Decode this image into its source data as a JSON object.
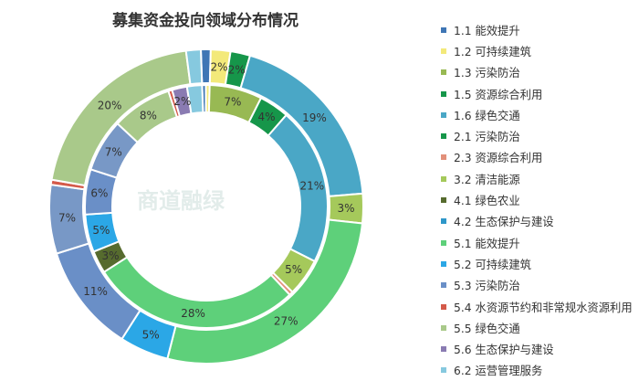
{
  "watermark": "商道融绿",
  "chart_data": {
    "type": "pie",
    "title": "募集资金投向领域分布情况",
    "legend_position": "right",
    "legend": [
      {
        "label": "1.1 能效提升",
        "color": "#3f76b5"
      },
      {
        "label": "1.2 可持续建筑",
        "color": "#f3e97a"
      },
      {
        "label": "1.3 污染防治",
        "color": "#98b953"
      },
      {
        "label": "1.5 资源综合利用",
        "color": "#16964a"
      },
      {
        "label": "1.6 绿色交通",
        "color": "#4aa7c6"
      },
      {
        "label": "2.1 污染防治",
        "color": "#16964a"
      },
      {
        "label": "2.3 资源综合利用",
        "color": "#e2907a"
      },
      {
        "label": "3.2 清洁能源",
        "color": "#a5c95b"
      },
      {
        "label": "4.1 绿色农业",
        "color": "#566b2e"
      },
      {
        "label": "4.2 生态保护与建设",
        "color": "#2e97c9"
      },
      {
        "label": "5.1  能效提升",
        "color": "#5ed07a"
      },
      {
        "label": "5.2 可持续建筑",
        "color": "#2ba7e6"
      },
      {
        "label": "5.3  污染防治",
        "color": "#6a8fc7"
      },
      {
        "label": "5.4 水资源节约和非常规水资源利用",
        "color": "#d45a4a"
      },
      {
        "label": "5.5 绿色交通",
        "color": "#a9c98a"
      },
      {
        "label": "5.6 生态保护与建设",
        "color": "#8a7bb2"
      },
      {
        "label": "6.2 运营管理服务",
        "color": "#86c9df"
      }
    ],
    "rings": [
      {
        "name": "outer",
        "slices": [
          {
            "value": 1,
            "label": "",
            "color": "#3f76b5"
          },
          {
            "value": 2,
            "label": "2%",
            "color": "#f3e97a"
          },
          {
            "value": 2,
            "label": "2%",
            "color": "#16964a"
          },
          {
            "value": 19,
            "label": "19%",
            "color": "#4aa7c6"
          },
          {
            "value": 3,
            "label": "3%",
            "color": "#a5c95b"
          },
          {
            "value": 27,
            "label": "27%",
            "color": "#5ed07a"
          },
          {
            "value": 5,
            "label": "5%",
            "color": "#2ba7e6"
          },
          {
            "value": 11,
            "label": "11%",
            "color": "#6a8fc7"
          },
          {
            "value": 7,
            "label": "7%",
            "color": "#7898c6"
          },
          {
            "value": 0.5,
            "label": "",
            "color": "#d45a4a"
          },
          {
            "value": 20,
            "label": "20%",
            "color": "#a9c98a"
          },
          {
            "value": 1.5,
            "label": "",
            "color": "#86c9df"
          }
        ]
      },
      {
        "name": "inner",
        "slices": [
          {
            "value": 0.5,
            "label": "",
            "color": "#3f76b5"
          },
          {
            "value": 0.5,
            "label": "",
            "color": "#f3e97a"
          },
          {
            "value": 7,
            "label": "7%",
            "color": "#98b953"
          },
          {
            "value": 4,
            "label": "4%",
            "color": "#16964a"
          },
          {
            "value": 21,
            "label": "21%",
            "color": "#4aa7c6"
          },
          {
            "value": 5,
            "label": "5%",
            "color": "#a5c95b"
          },
          {
            "value": 0.5,
            "label": "",
            "color": "#e2907a"
          },
          {
            "value": 28,
            "label": "28%",
            "color": "#5ed07a"
          },
          {
            "value": 3,
            "label": "3%",
            "color": "#566b2e"
          },
          {
            "value": 5,
            "label": "5%",
            "color": "#2ba7e6"
          },
          {
            "value": 6,
            "label": "6%",
            "color": "#6a8fc7"
          },
          {
            "value": 7,
            "label": "7%",
            "color": "#7898c6"
          },
          {
            "value": 8,
            "label": "8%",
            "color": "#a9c98a"
          },
          {
            "value": 0.5,
            "label": "",
            "color": "#d45a4a"
          },
          {
            "value": 2,
            "label": "2%",
            "color": "#8a7bb2"
          },
          {
            "value": 2,
            "label": "",
            "color": "#86c9df"
          }
        ]
      }
    ]
  }
}
